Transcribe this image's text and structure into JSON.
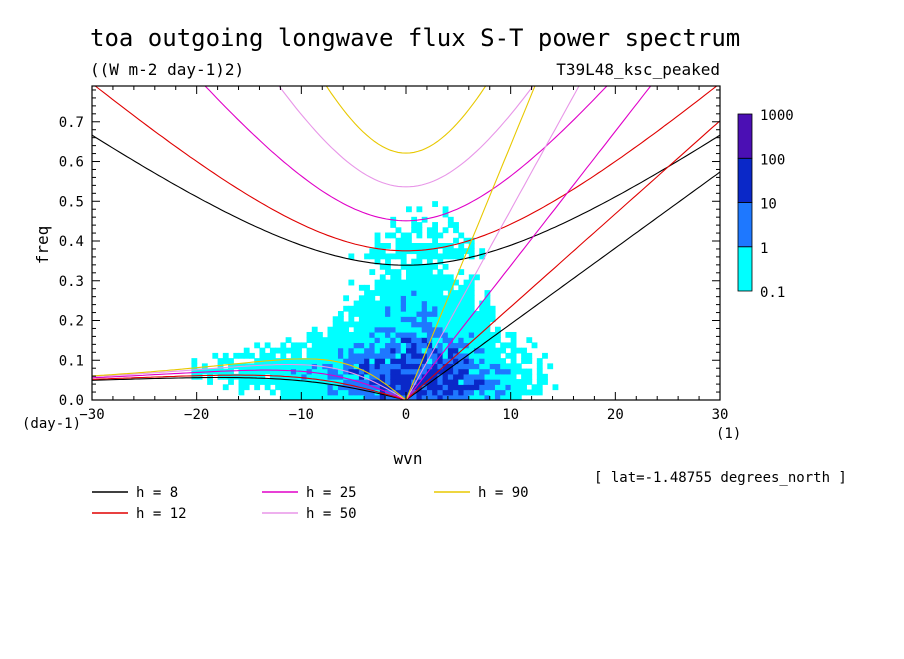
{
  "chart_data": {
    "type": "heatmap",
    "title": "toa outgoing longwave flux S-T power spectrum",
    "subtitle": "((W m-2 day-1)2)",
    "run_label": "T39L48_ksc_peaked",
    "xlabel": "wvn",
    "ylabel": "freq",
    "x_unit": "(1)",
    "y_unit": "(day-1)",
    "xlim": [
      -30,
      30
    ],
    "ylim": [
      0,
      0.79
    ],
    "x_ticks": [
      "-30",
      "-20",
      "-10",
      "0",
      "10",
      "20",
      "30"
    ],
    "y_ticks": [
      "0.0",
      "0.1",
      "0.2",
      "0.3",
      "0.4",
      "0.5",
      "0.6",
      "0.7"
    ],
    "annotation": "[ lat=-1.48755 degrees_north ]",
    "colorbar": {
      "levels": [
        "0.1",
        "1",
        "10",
        "100",
        "1000"
      ],
      "colors": [
        "#00ffff",
        "#1e78ff",
        "#0a28c8",
        "#4b0fb4"
      ]
    },
    "dispersion_curves": [
      {
        "label": "h = 8",
        "h": 8,
        "color": "#000000"
      },
      {
        "label": "h = 12",
        "h": 12,
        "color": "#e00000"
      },
      {
        "label": "h = 25",
        "h": 25,
        "color": "#e000c8"
      },
      {
        "label": "h = 50",
        "h": 50,
        "color": "#e896e8"
      },
      {
        "label": "h = 90",
        "h": 90,
        "color": "#e8c800"
      }
    ]
  }
}
